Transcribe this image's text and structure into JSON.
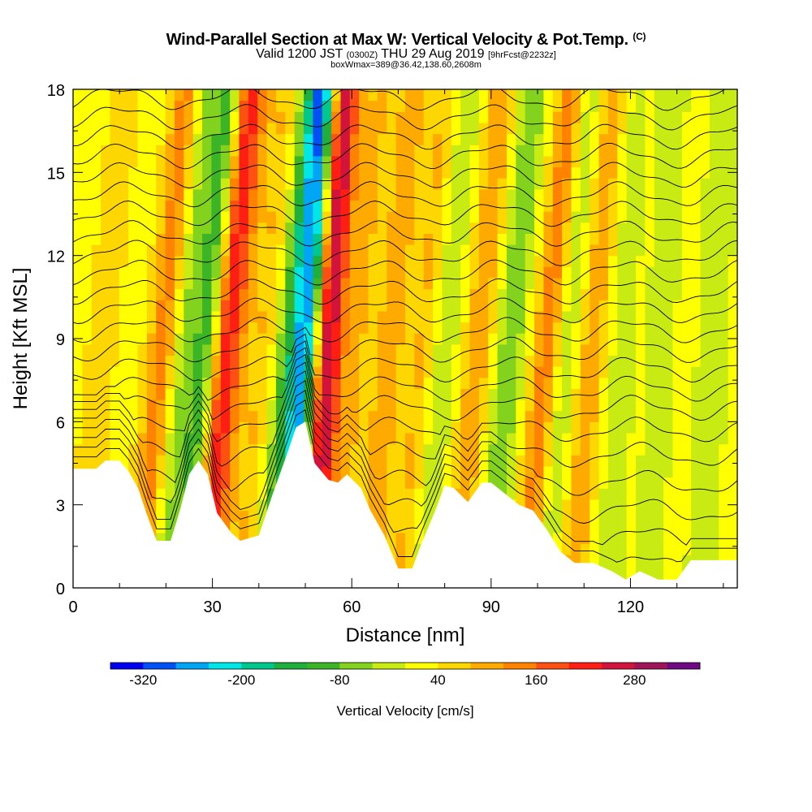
{
  "title": {
    "main": "Wind-Parallel Section at Max W: Vertical Velocity & Pot.Temp.",
    "copyright": "(C)",
    "valid_prefix": "Valid 1200 JST",
    "valid_utc": "(0300Z)",
    "valid_date": "THU 29 Aug 2019",
    "forecast": "[9hrFcst@2232z]",
    "box_info": "boxWmax=389@36.42,138.60,2608m"
  },
  "chart_data": {
    "type": "heatmap",
    "xlabel": "Distance [nm]",
    "ylabel": "Height [Kft MSL]",
    "xlim": [
      0,
      143
    ],
    "ylim": [
      0,
      18
    ],
    "x_ticks": [
      "0",
      "30",
      "60",
      "90",
      "120"
    ],
    "y_ticks": [
      "0",
      "3",
      "6",
      "9",
      "12",
      "15",
      "18"
    ],
    "colorbar": {
      "label": "Vertical Velocity [cm/s]",
      "tick_labels": [
        "-320",
        "-200",
        "-80",
        "40",
        "160",
        "280"
      ],
      "levels": [
        -360,
        -320,
        -280,
        -240,
        -200,
        -160,
        -120,
        -80,
        -40,
        0,
        40,
        80,
        120,
        160,
        200,
        240,
        280,
        320,
        360
      ],
      "colors": [
        "#0000f0",
        "#0050f5",
        "#00a5f5",
        "#00e6e6",
        "#00c88c",
        "#1eaf3c",
        "#3cb428",
        "#82d21e",
        "#c8eb14",
        "#ffff00",
        "#ffd700",
        "#ffaa00",
        "#ff8200",
        "#ff5014",
        "#ff1e14",
        "#d2143c",
        "#a0145a",
        "#6e0a82"
      ]
    },
    "terrain_kft": [
      [
        0,
        4.3
      ],
      [
        5,
        4.3
      ],
      [
        7,
        4.6
      ],
      [
        10,
        4.6
      ],
      [
        12,
        4.2
      ],
      [
        14,
        3.6
      ],
      [
        16,
        2.6
      ],
      [
        18,
        1.7
      ],
      [
        21,
        1.7
      ],
      [
        23,
        2.8
      ],
      [
        25,
        4.1
      ],
      [
        27,
        4.6
      ],
      [
        29,
        4.1
      ],
      [
        31,
        2.7
      ],
      [
        34,
        2.0
      ],
      [
        36,
        1.7
      ],
      [
        40,
        1.9
      ],
      [
        43,
        3.4
      ],
      [
        46,
        4.8
      ],
      [
        48,
        5.8
      ],
      [
        50,
        6.0
      ],
      [
        52,
        4.5
      ],
      [
        55,
        3.9
      ],
      [
        57,
        3.8
      ],
      [
        59,
        4.1
      ],
      [
        62,
        3.6
      ],
      [
        64,
        2.8
      ],
      [
        67,
        1.9
      ],
      [
        70,
        0.7
      ],
      [
        73,
        0.7
      ],
      [
        75,
        1.6
      ],
      [
        78,
        2.8
      ],
      [
        80,
        3.7
      ],
      [
        82,
        3.6
      ],
      [
        85,
        3.1
      ],
      [
        88,
        3.8
      ],
      [
        90,
        3.8
      ],
      [
        93,
        3.4
      ],
      [
        96,
        3.0
      ],
      [
        99,
        2.8
      ],
      [
        102,
        2.1
      ],
      [
        105,
        1.3
      ],
      [
        108,
        0.9
      ],
      [
        112,
        0.9
      ],
      [
        116,
        0.6
      ],
      [
        119,
        0.3
      ],
      [
        122,
        0.6
      ],
      [
        126,
        0.3
      ],
      [
        130,
        0.3
      ],
      [
        133,
        1.0
      ],
      [
        138,
        1.0
      ],
      [
        143,
        1.0
      ]
    ],
    "velocity_bands": [
      {
        "x": 3,
        "w": 3,
        "tilt": 0.55,
        "v": 50
      },
      {
        "x": 16,
        "w": 3,
        "tilt": 0.55,
        "v": 110
      },
      {
        "x": 29.5,
        "w": 4,
        "tilt": 0.55,
        "v": 230
      },
      {
        "x": 26,
        "w": 3,
        "tilt": 0.55,
        "v": -190
      },
      {
        "x": 21,
        "w": 3,
        "tilt": 0.55,
        "v": -70
      },
      {
        "x": 38,
        "w": 3,
        "tilt": 0.55,
        "v": 60
      },
      {
        "x": 44,
        "w": 4,
        "tilt": 0.55,
        "v": -110
      },
      {
        "x": 48.5,
        "w": 3.5,
        "tilt": 0.4,
        "v": -300
      },
      {
        "x": 52,
        "w": 3.5,
        "tilt": 0.4,
        "v": 330
      },
      {
        "x": 58,
        "w": 3,
        "tilt": 0.55,
        "v": 60
      },
      {
        "x": 65,
        "w": 3,
        "tilt": 0.55,
        "v": 90
      },
      {
        "x": 72,
        "w": 3,
        "tilt": 0.55,
        "v": 60
      },
      {
        "x": 77,
        "w": 3,
        "tilt": 0.55,
        "v": -60
      },
      {
        "x": 84,
        "w": 3,
        "tilt": 0.55,
        "v": 90
      },
      {
        "x": 91,
        "w": 3,
        "tilt": 0.55,
        "v": -100
      },
      {
        "x": 99,
        "w": 3,
        "tilt": 0.55,
        "v": 120
      },
      {
        "x": 103,
        "w": 3,
        "tilt": 0.55,
        "v": -60
      },
      {
        "x": 109,
        "w": 3,
        "tilt": 0.5,
        "v": 90
      },
      {
        "x": 116,
        "w": 4,
        "tilt": 0.3,
        "v": -40
      },
      {
        "x": 125,
        "w": 4,
        "tilt": 0.3,
        "v": -40
      },
      {
        "x": 136,
        "w": 4,
        "tilt": 0.3,
        "v": -50
      }
    ],
    "isentrope_levels_kft": [
      0.8,
      1.8,
      2.8,
      3.8,
      4.8,
      5.7,
      6.5,
      7.2,
      7.9,
      8.6,
      9.3,
      10.0,
      10.7,
      11.4,
      12.1,
      12.8,
      13.5,
      14.2,
      14.9,
      15.6,
      16.3,
      17.0,
      17.7
    ]
  }
}
